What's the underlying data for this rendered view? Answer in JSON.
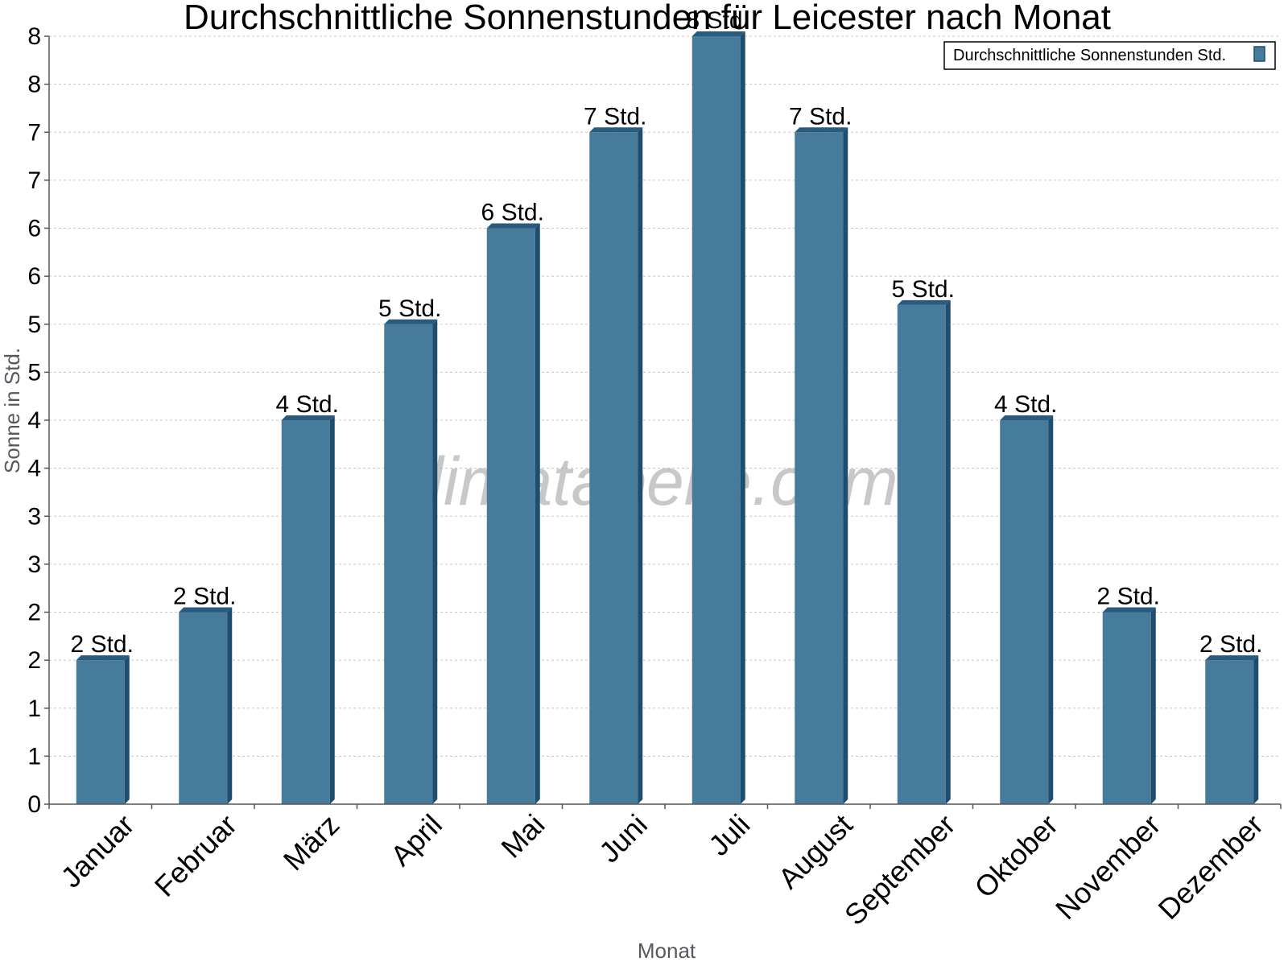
{
  "chart_data": {
    "type": "bar",
    "title": "Durchschnittliche Sonnenstunden für Leicester nach Monat",
    "xlabel": "Monat",
    "ylabel": "Sonne in Std.",
    "categories": [
      "Januar",
      "Februar",
      "März",
      "April",
      "Mai",
      "Juni",
      "Juli",
      "August",
      "September",
      "Oktober",
      "November",
      "Dezember"
    ],
    "series": [
      {
        "name": "Durchschnittliche Sonnenstunden Std.",
        "values": [
          1.5,
          2.0,
          4.0,
          5.0,
          6.0,
          7.0,
          8.0,
          7.0,
          5.2,
          4.0,
          2.0,
          1.5
        ],
        "labels": [
          "2 Std.",
          "2 Std.",
          "4 Std.",
          "5 Std.",
          "6 Std.",
          "7 Std.",
          "8 Std.",
          "7 Std.",
          "5 Std.",
          "4 Std.",
          "2 Std.",
          "2 Std."
        ]
      }
    ],
    "ylim": [
      0,
      8
    ],
    "ytick_values": [
      0,
      0.5,
      1,
      1.5,
      2,
      2.5,
      3,
      3.5,
      4,
      4.5,
      5,
      5.5,
      6,
      6.5,
      7,
      7.5,
      8
    ],
    "ytick_labels": [
      "0",
      "1",
      "1",
      "2",
      "2",
      "3",
      "3",
      "4",
      "4",
      "5",
      "5",
      "6",
      "6",
      "7",
      "7",
      "8",
      "8"
    ],
    "grid": true,
    "legend_position": "top-right",
    "watermark": "klimatabelle.com",
    "colors": {
      "bar_front": "#467b9c",
      "bar_side": "#1f4d6e",
      "bar_top": "#2a5a7c",
      "grid": "#c8c8c8",
      "axis": "#555555"
    }
  }
}
